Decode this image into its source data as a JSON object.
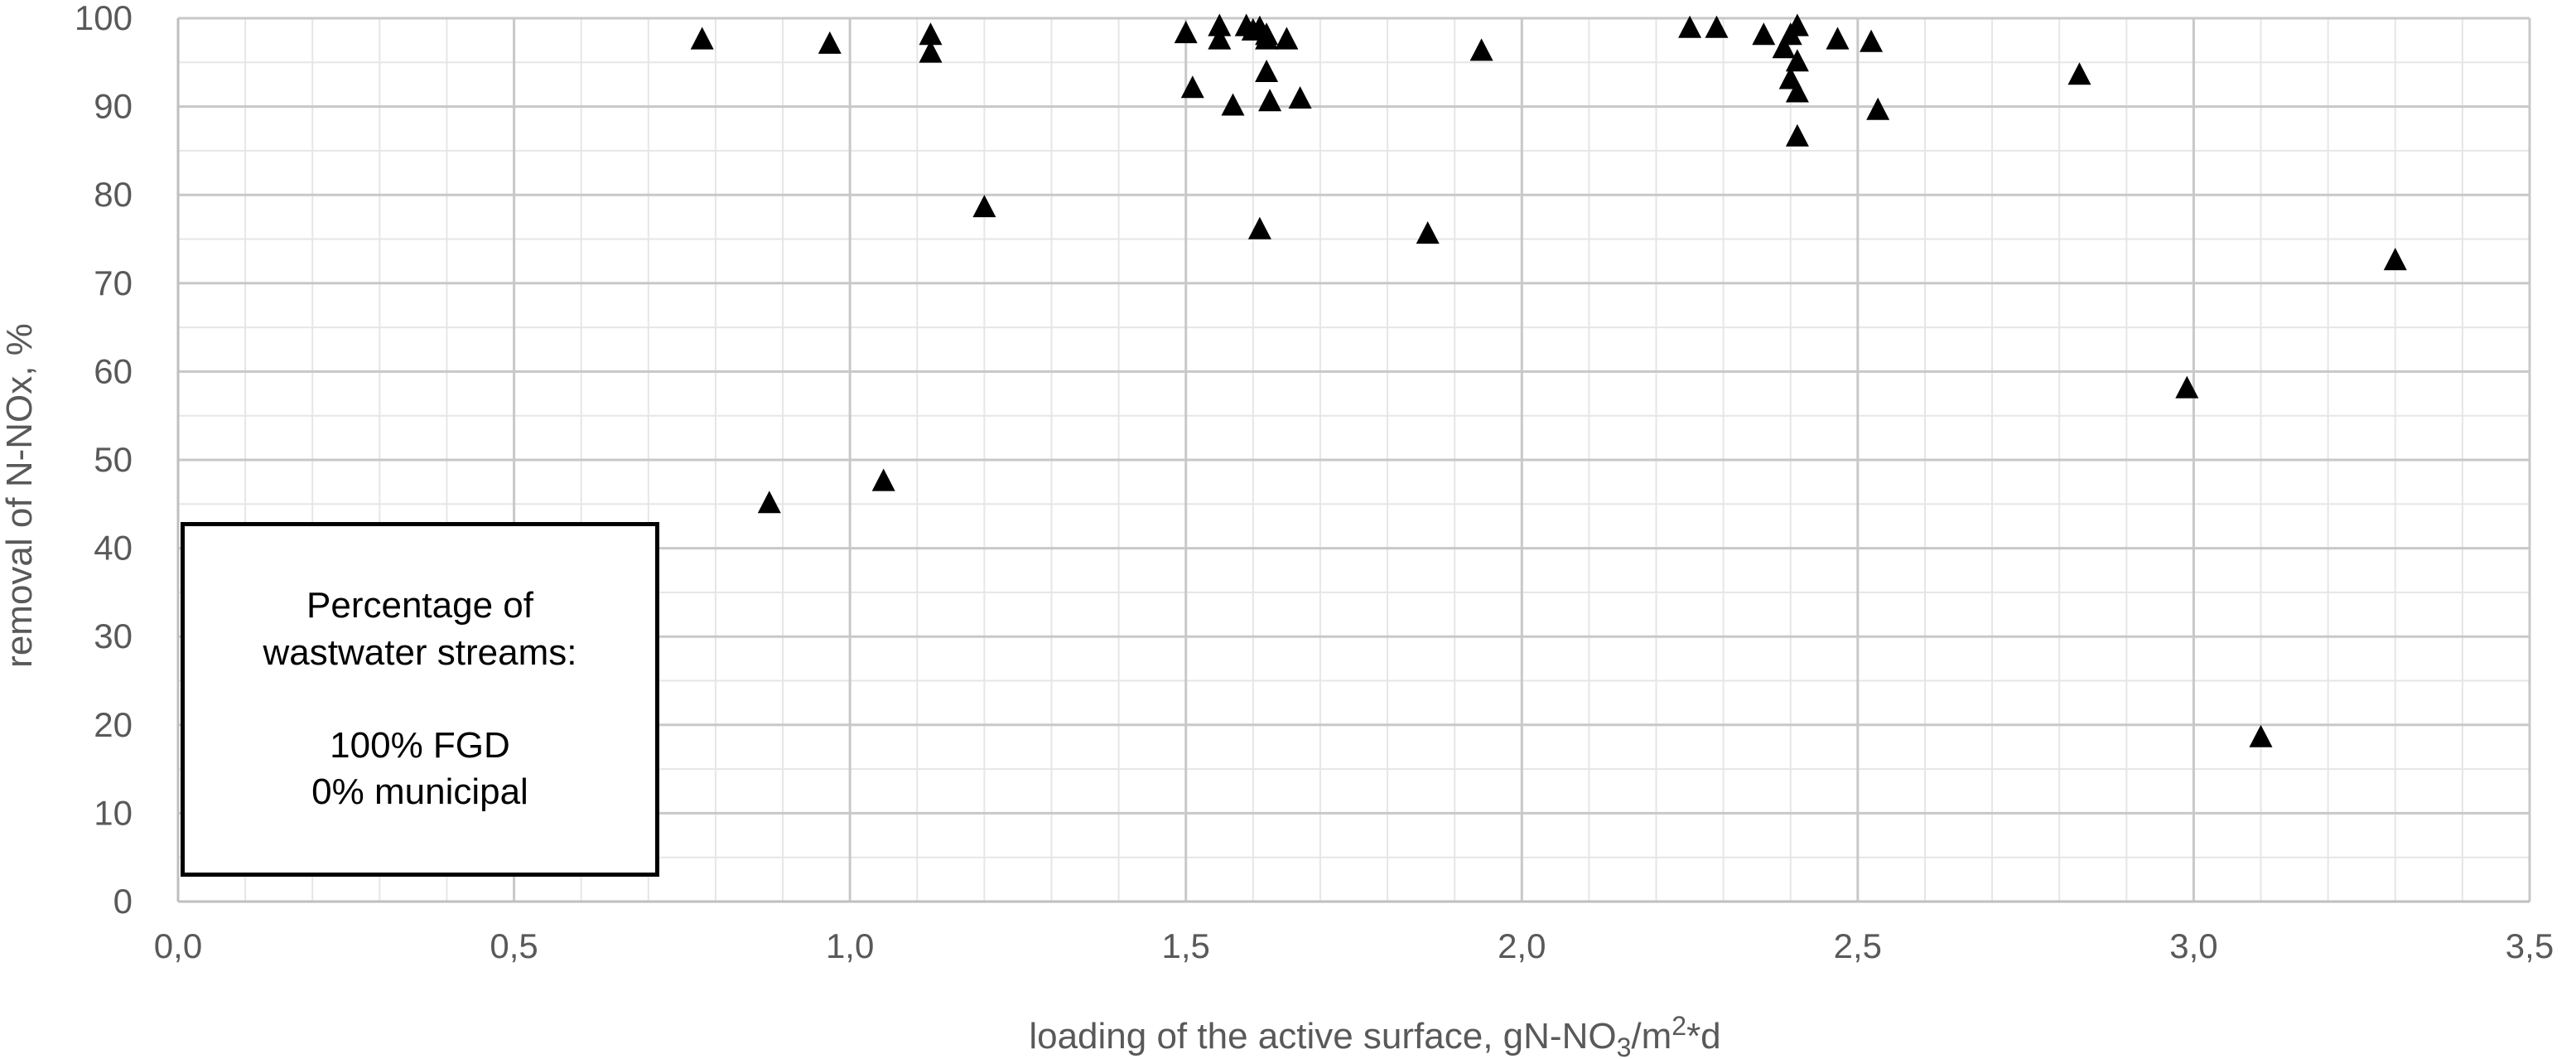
{
  "chart_data": {
    "type": "scatter",
    "title": "",
    "xlabel": {
      "prefix": "loading of the active surface,  gN-NO",
      "sub": "3",
      "mid": "/m",
      "sup": "2",
      "suffix": "*d"
    },
    "ylabel": "removal of N-NOx, %",
    "xlim": [
      0,
      3.5
    ],
    "ylim": [
      0,
      100
    ],
    "x_ticks": [
      "0,0",
      "0,5",
      "1,0",
      "1,5",
      "2,0",
      "2,5",
      "3,0",
      "3,5"
    ],
    "y_ticks": [
      "0",
      "10",
      "20",
      "30",
      "40",
      "50",
      "60",
      "70",
      "80",
      "90",
      "100"
    ],
    "grid": true,
    "marker": "triangle",
    "marker_color": "#000000",
    "legend_text": {
      "line1": "Percentage of",
      "line2": "wastwater streams:",
      "line3": "100% FGD",
      "line4": "0% municipal"
    },
    "points": [
      [
        0.78,
        97.5
      ],
      [
        0.88,
        45.0
      ],
      [
        0.97,
        97.0
      ],
      [
        1.05,
        47.5
      ],
      [
        1.12,
        98.0
      ],
      [
        1.12,
        96.0
      ],
      [
        1.2,
        78.5
      ],
      [
        1.5,
        98.2
      ],
      [
        1.51,
        92.0
      ],
      [
        1.55,
        99.0
      ],
      [
        1.55,
        97.5
      ],
      [
        1.57,
        90.0
      ],
      [
        1.59,
        99.0
      ],
      [
        1.6,
        98.5
      ],
      [
        1.61,
        98.8
      ],
      [
        1.61,
        76.0
      ],
      [
        1.62,
        98.0
      ],
      [
        1.62,
        93.8
      ],
      [
        1.62,
        97.5
      ],
      [
        1.625,
        90.5
      ],
      [
        1.65,
        97.5
      ],
      [
        1.67,
        90.8
      ],
      [
        1.86,
        75.5
      ],
      [
        1.94,
        96.2
      ],
      [
        2.25,
        98.8
      ],
      [
        2.29,
        98.8
      ],
      [
        2.36,
        98.0
      ],
      [
        2.39,
        96.5
      ],
      [
        2.4,
        93.0
      ],
      [
        2.4,
        98.0
      ],
      [
        2.41,
        95.0
      ],
      [
        2.41,
        99.0
      ],
      [
        2.41,
        91.5
      ],
      [
        2.41,
        86.5
      ],
      [
        2.47,
        97.5
      ],
      [
        2.52,
        97.2
      ],
      [
        2.53,
        89.5
      ],
      [
        2.83,
        93.5
      ],
      [
        2.99,
        58.0
      ],
      [
        3.1,
        18.5
      ],
      [
        3.3,
        72.5
      ]
    ]
  }
}
